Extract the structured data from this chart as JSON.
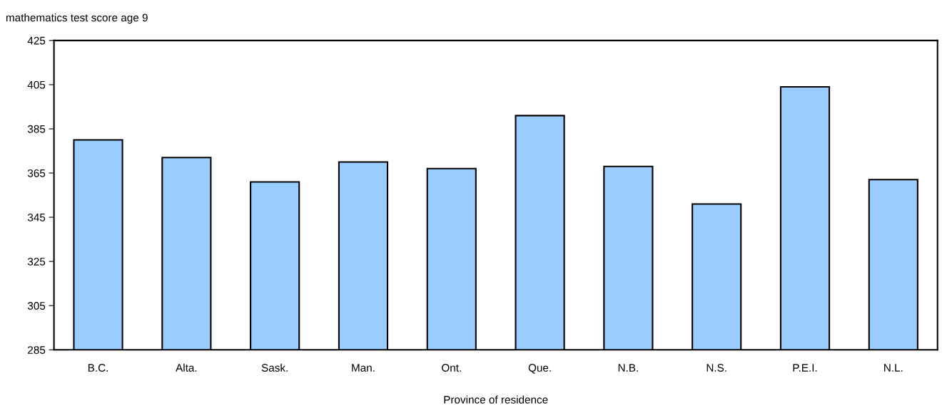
{
  "chart_data": {
    "type": "bar",
    "ylabel": "mathematics test score age 9",
    "xlabel": "Province of residence",
    "categories": [
      "B.C.",
      "Alta.",
      "Sask.",
      "Man.",
      "Ont.",
      "Que.",
      "N.B.",
      "N.S.",
      "P.E.I.",
      "N.L."
    ],
    "values": [
      380,
      372,
      361,
      370,
      367,
      391,
      368,
      351,
      404,
      362
    ],
    "color": "#99ccff",
    "ylim": [
      285,
      425
    ],
    "yticks": [
      285,
      305,
      325,
      345,
      365,
      385,
      405,
      425
    ],
    "grid": false,
    "legend": false
  }
}
